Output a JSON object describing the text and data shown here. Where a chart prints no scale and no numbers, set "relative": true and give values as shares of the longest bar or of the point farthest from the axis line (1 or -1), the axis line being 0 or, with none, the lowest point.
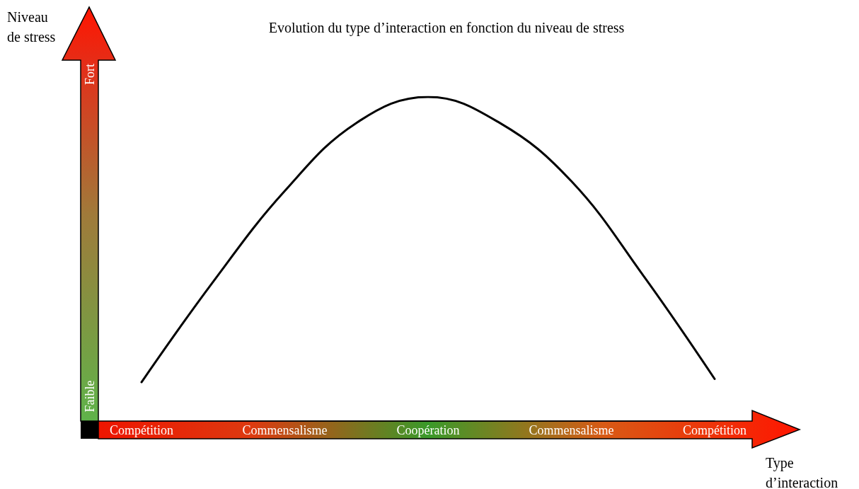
{
  "chart_data": {
    "type": "line",
    "title": "Evolution du type d’interaction en fonction du niveau de stress",
    "xlabel": "Type\nd’interaction",
    "relative": true,
    "categories": [
      "Compétition",
      null,
      "Commensalisme",
      null,
      "Coopération",
      null,
      "Commensalisme",
      null,
      "Compétition"
    ],
    "series": [
      {
        "color": "#000000",
        "values": [
          0.12,
          0.43,
          0.71,
          0.92,
          1,
          0.92,
          0.74,
          0.45,
          0.13
        ]
      }
    ],
    "marker": "none",
    "line_style": "solid",
    "annotations": [
      "Niveau\nde stress",
      "Faible",
      "Fort"
    ]
  }
}
